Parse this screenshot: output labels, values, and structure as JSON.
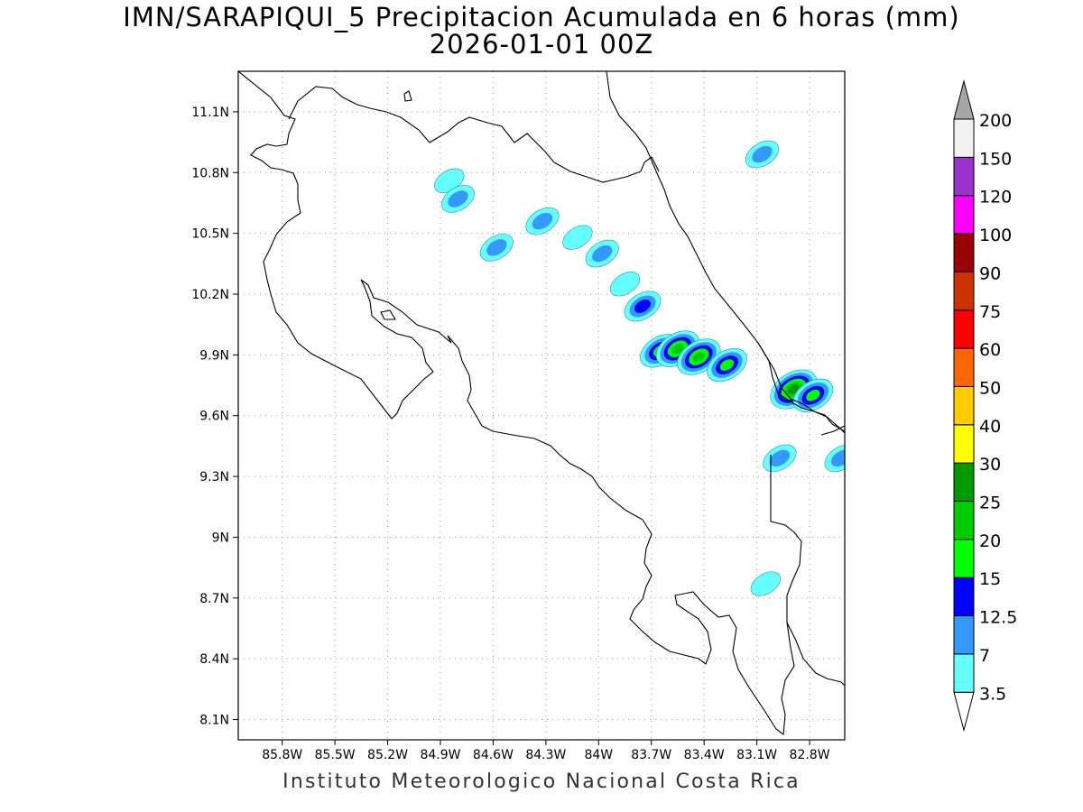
{
  "title": {
    "line1": "IMN/SARAPIQUI_5 Precipitacion Acumulada en 6 horas (mm)",
    "line2": "2026-01-01 00Z"
  },
  "footer": "Instituto Meteorologico Nacional Costa Rica",
  "map": {
    "lon_range": [
      -86.05,
      -82.6
    ],
    "lat_range": [
      8.0,
      11.3
    ],
    "lon_ticks": [
      {
        "value": -85.8,
        "label": "85.8W"
      },
      {
        "value": -85.5,
        "label": "85.5W"
      },
      {
        "value": -85.2,
        "label": "85.2W"
      },
      {
        "value": -84.9,
        "label": "84.9W"
      },
      {
        "value": -84.6,
        "label": "84.6W"
      },
      {
        "value": -84.3,
        "label": "84.3W"
      },
      {
        "value": -84.0,
        "label": "84W"
      },
      {
        "value": -83.7,
        "label": "83.7W"
      },
      {
        "value": -83.4,
        "label": "83.4W"
      },
      {
        "value": -83.1,
        "label": "83.1W"
      },
      {
        "value": -82.8,
        "label": "82.8W"
      }
    ],
    "lat_ticks": [
      {
        "value": 8.1,
        "label": "8.1N"
      },
      {
        "value": 8.4,
        "label": "8.4N"
      },
      {
        "value": 8.7,
        "label": "8.7N"
      },
      {
        "value": 9.0,
        "label": "9N"
      },
      {
        "value": 9.3,
        "label": "9.3N"
      },
      {
        "value": 9.6,
        "label": "9.6N"
      },
      {
        "value": 9.9,
        "label": "9.9N"
      },
      {
        "value": 10.2,
        "label": "10.2N"
      },
      {
        "value": 10.5,
        "label": "10.5N"
      },
      {
        "value": 10.8,
        "label": "10.8N"
      },
      {
        "value": 11.1,
        "label": "11.1N"
      }
    ],
    "grid": true,
    "coastline_color": "#000000",
    "precip_cells": [
      {
        "lon": -84.85,
        "lat": 10.76,
        "level": 0
      },
      {
        "lon": -84.8,
        "lat": 10.67,
        "level": 1
      },
      {
        "lon": -84.58,
        "lat": 10.43,
        "level": 1
      },
      {
        "lon": -84.32,
        "lat": 10.56,
        "level": 1
      },
      {
        "lon": -84.12,
        "lat": 10.48,
        "level": 0
      },
      {
        "lon": -83.98,
        "lat": 10.4,
        "level": 1
      },
      {
        "lon": -83.85,
        "lat": 10.25,
        "level": 0
      },
      {
        "lon": -83.75,
        "lat": 10.14,
        "level": 2
      },
      {
        "lon": -83.65,
        "lat": 9.92,
        "level": 3
      },
      {
        "lon": -83.55,
        "lat": 9.93,
        "level": 4
      },
      {
        "lon": -83.43,
        "lat": 9.89,
        "level": 4
      },
      {
        "lon": -83.27,
        "lat": 9.85,
        "level": 3
      },
      {
        "lon": -82.89,
        "lat": 9.73,
        "level": 5
      },
      {
        "lon": -82.78,
        "lat": 9.7,
        "level": 3
      },
      {
        "lon": -83.07,
        "lat": 10.89,
        "level": 1
      },
      {
        "lon": -82.62,
        "lat": 9.39,
        "level": 1
      },
      {
        "lon": -82.97,
        "lat": 9.39,
        "level": 1
      },
      {
        "lon": -83.05,
        "lat": 8.77,
        "level": 0
      }
    ]
  },
  "colorbar": {
    "levels": [
      "3.5",
      "7",
      "12.5",
      "15",
      "20",
      "25",
      "30",
      "40",
      "50",
      "60",
      "75",
      "90",
      "100",
      "120",
      "150",
      "200"
    ],
    "colors": [
      "#66ffff",
      "#3399ff",
      "#0000ff",
      "#00ff00",
      "#00cc00",
      "#009900",
      "#ffff00",
      "#ffcc00",
      "#ff6600",
      "#ff0000",
      "#cc3300",
      "#990000",
      "#ff00ff",
      "#9933cc",
      "#f2f2f2",
      "#a6a6a6"
    ]
  }
}
